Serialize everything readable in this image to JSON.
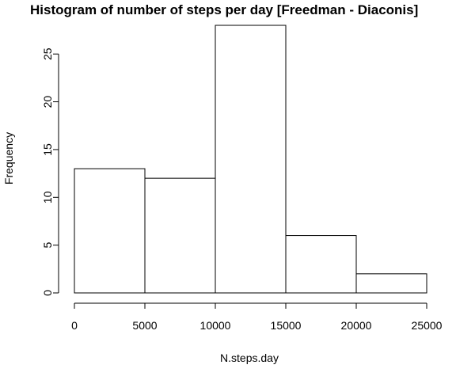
{
  "chart_data": {
    "type": "bar",
    "title": "Histogram of number of steps per day [Freedman - Diaconis]",
    "xlabel": "N.steps.day",
    "ylabel": "Frequency",
    "bins": [
      {
        "from": 0,
        "to": 5000,
        "value": 13
      },
      {
        "from": 5000,
        "to": 10000,
        "value": 12
      },
      {
        "from": 10000,
        "to": 15000,
        "value": 28
      },
      {
        "from": 15000,
        "to": 20000,
        "value": 6
      },
      {
        "from": 20000,
        "to": 25000,
        "value": 2
      }
    ],
    "xlim": [
      0,
      25000
    ],
    "ylim": [
      0,
      28
    ],
    "x_ticks": [
      0,
      5000,
      10000,
      15000,
      20000,
      25000
    ],
    "y_ticks": [
      0,
      5,
      10,
      15,
      20,
      25
    ],
    "grid": false,
    "legend": "none",
    "bar_fill": "#ffffff",
    "bar_stroke": "#000000"
  }
}
